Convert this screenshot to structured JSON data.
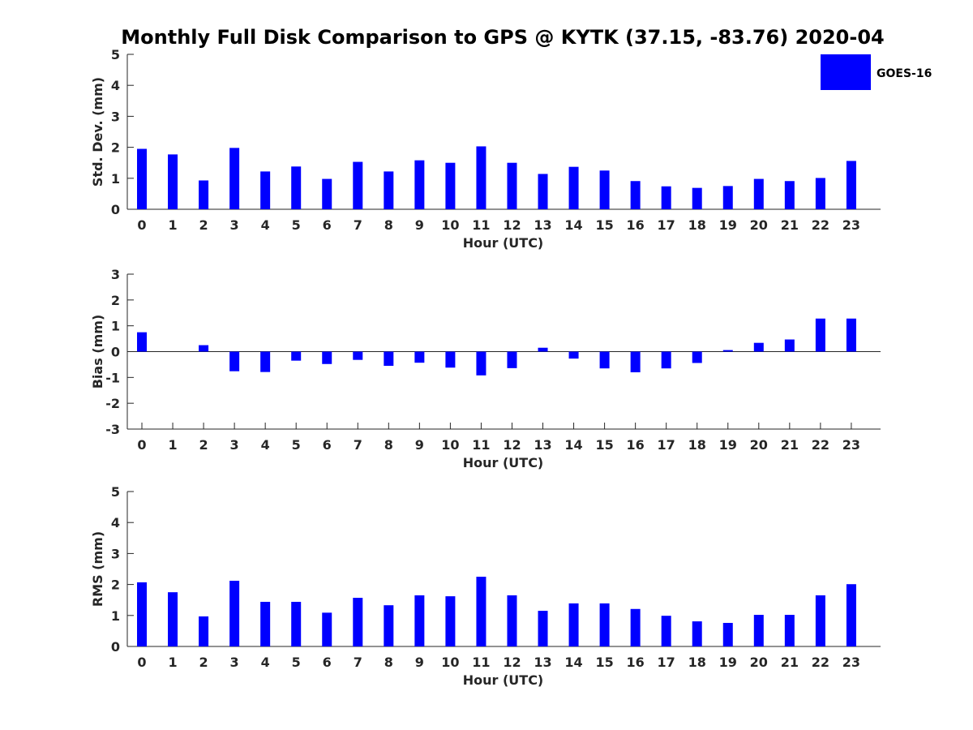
{
  "title": "Monthly Full Disk Comparison to GPS @ KYTK (37.15, -83.76) 2020-04",
  "legend": {
    "label": "GOES-16",
    "color": "#0000ff"
  },
  "bar_color": "#0000ff",
  "chart_data": [
    {
      "type": "bar",
      "xlabel": "Hour (UTC)",
      "ylabel": "Std. Dev. (mm)",
      "ylim": [
        0,
        5
      ],
      "yticks": [
        "0",
        "1",
        "2",
        "3",
        "4",
        "5"
      ],
      "categories": [
        "0",
        "1",
        "2",
        "3",
        "4",
        "5",
        "6",
        "7",
        "8",
        "9",
        "10",
        "11",
        "12",
        "13",
        "14",
        "15",
        "16",
        "17",
        "18",
        "19",
        "20",
        "21",
        "22",
        "23"
      ],
      "series": [
        {
          "name": "GOES-16",
          "values": [
            1.95,
            1.77,
            0.93,
            1.98,
            1.22,
            1.38,
            0.98,
            1.53,
            1.22,
            1.58,
            1.5,
            2.03,
            1.5,
            1.14,
            1.37,
            1.25,
            0.91,
            0.74,
            0.69,
            0.75,
            0.98,
            0.91,
            1.01,
            1.56
          ]
        }
      ],
      "grid": false,
      "legend_position": "top-right"
    },
    {
      "type": "bar",
      "xlabel": "Hour (UTC)",
      "ylabel": "Bias (mm)",
      "ylim": [
        -3,
        3
      ],
      "yticks": [
        "-3",
        "-2",
        "-1",
        "0",
        "1",
        "2",
        "3"
      ],
      "zero_line": true,
      "categories": [
        "0",
        "1",
        "2",
        "3",
        "4",
        "5",
        "6",
        "7",
        "8",
        "9",
        "10",
        "11",
        "12",
        "13",
        "14",
        "15",
        "16",
        "17",
        "18",
        "19",
        "20",
        "21",
        "22",
        "23"
      ],
      "series": [
        {
          "name": "GOES-16",
          "values": [
            0.75,
            0.0,
            0.25,
            -0.76,
            -0.79,
            -0.35,
            -0.48,
            -0.32,
            -0.55,
            -0.43,
            -0.62,
            -0.92,
            -0.64,
            0.15,
            -0.27,
            -0.65,
            -0.8,
            -0.65,
            -0.44,
            0.06,
            0.34,
            0.47,
            1.28,
            1.28
          ]
        }
      ],
      "grid": false
    },
    {
      "type": "bar",
      "xlabel": "Hour (UTC)",
      "ylabel": "RMS (mm)",
      "ylim": [
        0,
        5
      ],
      "yticks": [
        "0",
        "1",
        "2",
        "3",
        "4",
        "5"
      ],
      "categories": [
        "0",
        "1",
        "2",
        "3",
        "4",
        "5",
        "6",
        "7",
        "8",
        "9",
        "10",
        "11",
        "12",
        "13",
        "14",
        "15",
        "16",
        "17",
        "18",
        "19",
        "20",
        "21",
        "22",
        "23"
      ],
      "series": [
        {
          "name": "GOES-16",
          "values": [
            2.07,
            1.75,
            0.97,
            2.12,
            1.44,
            1.44,
            1.09,
            1.57,
            1.33,
            1.65,
            1.62,
            2.25,
            1.65,
            1.15,
            1.39,
            1.39,
            1.21,
            0.99,
            0.81,
            0.76,
            1.02,
            1.02,
            1.65,
            2.01
          ]
        }
      ],
      "grid": false
    }
  ]
}
